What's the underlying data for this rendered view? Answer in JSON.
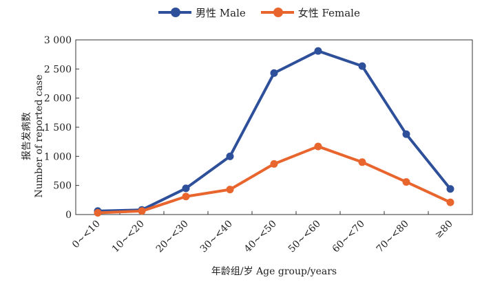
{
  "chart_data": {
    "type": "line",
    "categories": [
      "0~<10",
      "10~<20",
      "20~<30",
      "30~<40",
      "40~<50",
      "50~<60",
      "60~<70",
      "70~<80",
      "≥80"
    ],
    "series": [
      {
        "name": "男性 Male",
        "color": "#2e4f99",
        "values": [
          60,
          80,
          450,
          1000,
          2430,
          2810,
          2550,
          1380,
          440
        ]
      },
      {
        "name": "女性 Female",
        "color": "#e8652e",
        "values": [
          30,
          60,
          310,
          430,
          870,
          1170,
          900,
          560,
          210
        ]
      }
    ],
    "ylabel_cn": "报告发病数",
    "ylabel_en": "Number of reported case",
    "xlabel": "年龄组/岁 Age group/years",
    "ylim": [
      0,
      3000
    ],
    "yticks": [
      0,
      500,
      1000,
      1500,
      2000,
      2500,
      3000
    ],
    "ytick_labels": [
      "0",
      "500",
      "1 000",
      "1 500",
      "2 000",
      "2 500",
      "3 000"
    ],
    "grid": false,
    "legend_position": "top-center"
  }
}
